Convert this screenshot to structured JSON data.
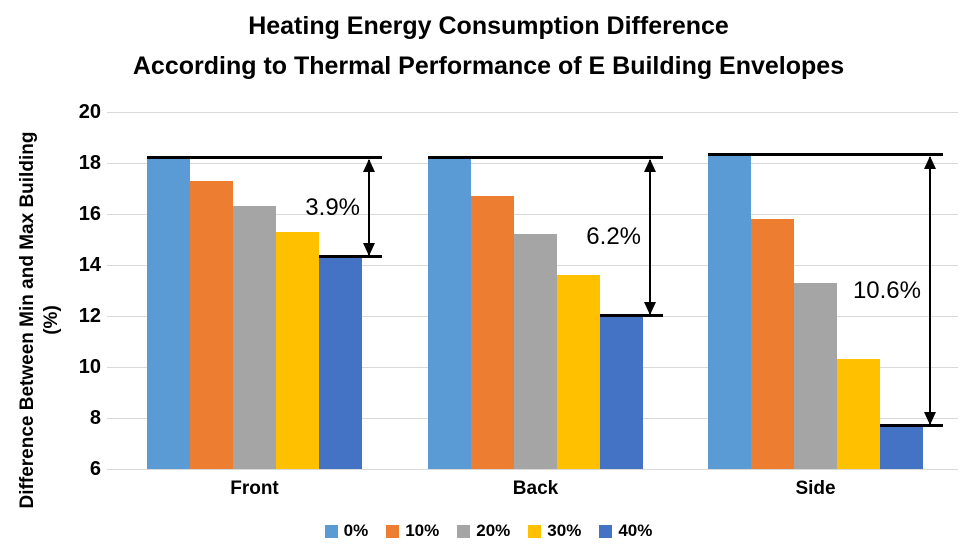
{
  "chart_data": {
    "type": "bar",
    "title_line1": "Heating Energy Consumption Difference",
    "title_line2": "According to Thermal Performance of E Building Envelopes",
    "ylabel_line1": "Difference Between Min and Max Building",
    "ylabel_line2": "(%)",
    "ylim": [
      6,
      20
    ],
    "ytick_step": 2,
    "yticks": [
      20,
      18,
      16,
      14,
      12,
      10,
      8,
      6
    ],
    "grid": true,
    "legend_position": "bottom",
    "categories": [
      "Front",
      "Back",
      "Side"
    ],
    "series": [
      {
        "name": "0%",
        "color": "#5B9BD5",
        "values": [
          18.2,
          18.2,
          18.3
        ]
      },
      {
        "name": "10%",
        "color": "#ED7D31",
        "values": [
          17.3,
          16.7,
          15.8
        ]
      },
      {
        "name": "20%",
        "color": "#A5A5A5",
        "values": [
          16.3,
          15.2,
          13.3
        ]
      },
      {
        "name": "30%",
        "color": "#FFC000",
        "values": [
          15.3,
          13.6,
          10.3
        ]
      },
      {
        "name": "40%",
        "color": "#4472C4",
        "values": [
          14.3,
          12.0,
          7.7
        ]
      }
    ],
    "annotations": [
      {
        "category": "Front",
        "label": "3.9%",
        "from": 18.2,
        "to": 14.3
      },
      {
        "category": "Back",
        "label": "6.2%",
        "from": 18.2,
        "to": 12.0
      },
      {
        "category": "Side",
        "label": "10.6%",
        "from": 18.3,
        "to": 7.7
      }
    ]
  },
  "colors": {
    "gridline": "#D9D9D9",
    "annotation": "#000000",
    "text": "#000000",
    "background": "#FFFFFF"
  }
}
